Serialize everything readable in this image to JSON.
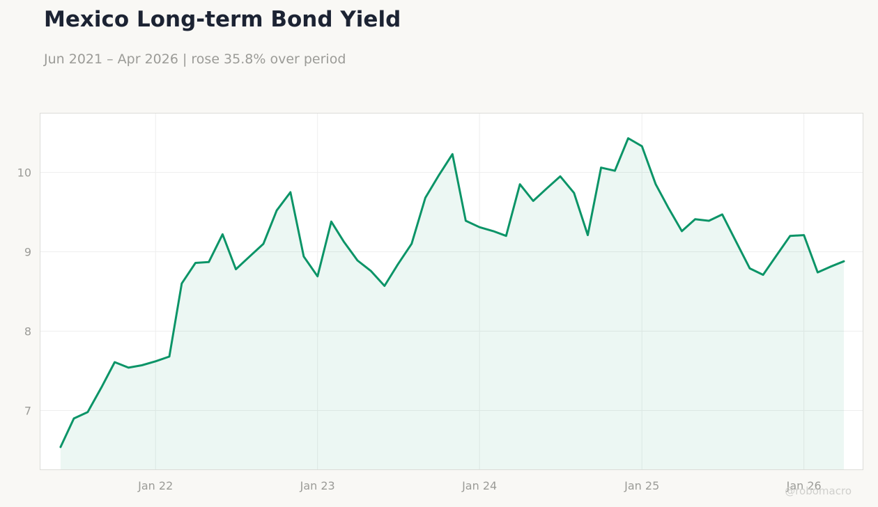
{
  "header": {
    "title": "Mexico Long-term Bond Yield",
    "subtitle": "Jun 2021 – Apr 2026 | rose 35.8% over period"
  },
  "watermark": "@robomacro",
  "colors": {
    "line": "#0b9467",
    "fill": "#0b9467",
    "grid": "#eeeeee",
    "background": "#f9f8f5",
    "plot_background": "#ffffff"
  },
  "chart_data": {
    "type": "area",
    "title": "Mexico Long-term Bond Yield",
    "xlabel": "",
    "ylabel": "",
    "grid": true,
    "x_ticks": [
      "2022-01-01",
      "2023-01-01",
      "2024-01-01",
      "2025-01-01",
      "2026-01-01"
    ],
    "x_tick_labels": [
      "Jan 22",
      "Jan 23",
      "Jan 24",
      "Jan 25",
      "Jan 26"
    ],
    "y_ticks": [
      7,
      8,
      9,
      10
    ],
    "y_tick_labels": [
      "7",
      "8",
      "9",
      "10"
    ],
    "xlim": [
      "2021-04-15",
      "2026-05-15"
    ],
    "ylim": [
      6.25,
      10.75
    ],
    "series": [
      {
        "x": [
          "2021-06-01",
          "2021-07-01",
          "2021-08-01",
          "2021-09-01",
          "2021-10-01",
          "2021-11-01",
          "2021-12-01",
          "2022-01-01",
          "2022-02-01",
          "2022-03-01",
          "2022-04-01",
          "2022-05-01",
          "2022-06-01",
          "2022-07-01",
          "2022-08-01",
          "2022-09-01",
          "2022-10-01",
          "2022-11-01",
          "2022-12-01",
          "2023-01-01",
          "2023-02-01",
          "2023-03-01",
          "2023-04-01",
          "2023-05-01",
          "2023-06-01",
          "2023-07-01",
          "2023-08-01",
          "2023-09-01",
          "2023-10-01",
          "2023-11-01",
          "2023-12-01",
          "2024-01-01",
          "2024-02-01",
          "2024-03-01",
          "2024-04-01",
          "2024-05-01",
          "2024-06-01",
          "2024-07-01",
          "2024-08-01",
          "2024-09-01",
          "2024-10-01",
          "2024-11-01",
          "2024-12-01",
          "2025-01-01",
          "2025-02-01",
          "2025-03-01",
          "2025-04-01",
          "2025-05-01",
          "2025-06-01",
          "2025-07-01",
          "2025-08-01",
          "2025-09-01",
          "2025-10-01",
          "2025-11-01",
          "2025-12-01",
          "2026-01-01",
          "2026-02-01",
          "2026-03-01",
          "2026-04-01"
        ],
        "values": [
          6.54,
          6.9,
          6.98,
          7.29,
          7.61,
          7.54,
          7.57,
          7.62,
          7.68,
          8.6,
          8.86,
          8.87,
          9.22,
          8.78,
          8.94,
          9.1,
          9.52,
          9.75,
          8.94,
          8.69,
          9.38,
          9.13,
          8.89,
          8.76,
          8.57,
          8.84,
          9.1,
          9.68,
          9.96,
          10.23,
          9.39,
          9.31,
          9.26,
          9.2,
          9.85,
          9.64,
          9.8,
          9.95,
          9.74,
          9.21,
          10.06,
          10.02,
          10.43,
          10.33,
          9.85,
          9.56,
          9.26,
          9.41,
          9.39,
          9.47,
          9.13,
          8.79,
          8.71,
          8.96,
          9.2,
          9.21,
          8.74,
          8.81,
          8.88
        ]
      }
    ]
  }
}
